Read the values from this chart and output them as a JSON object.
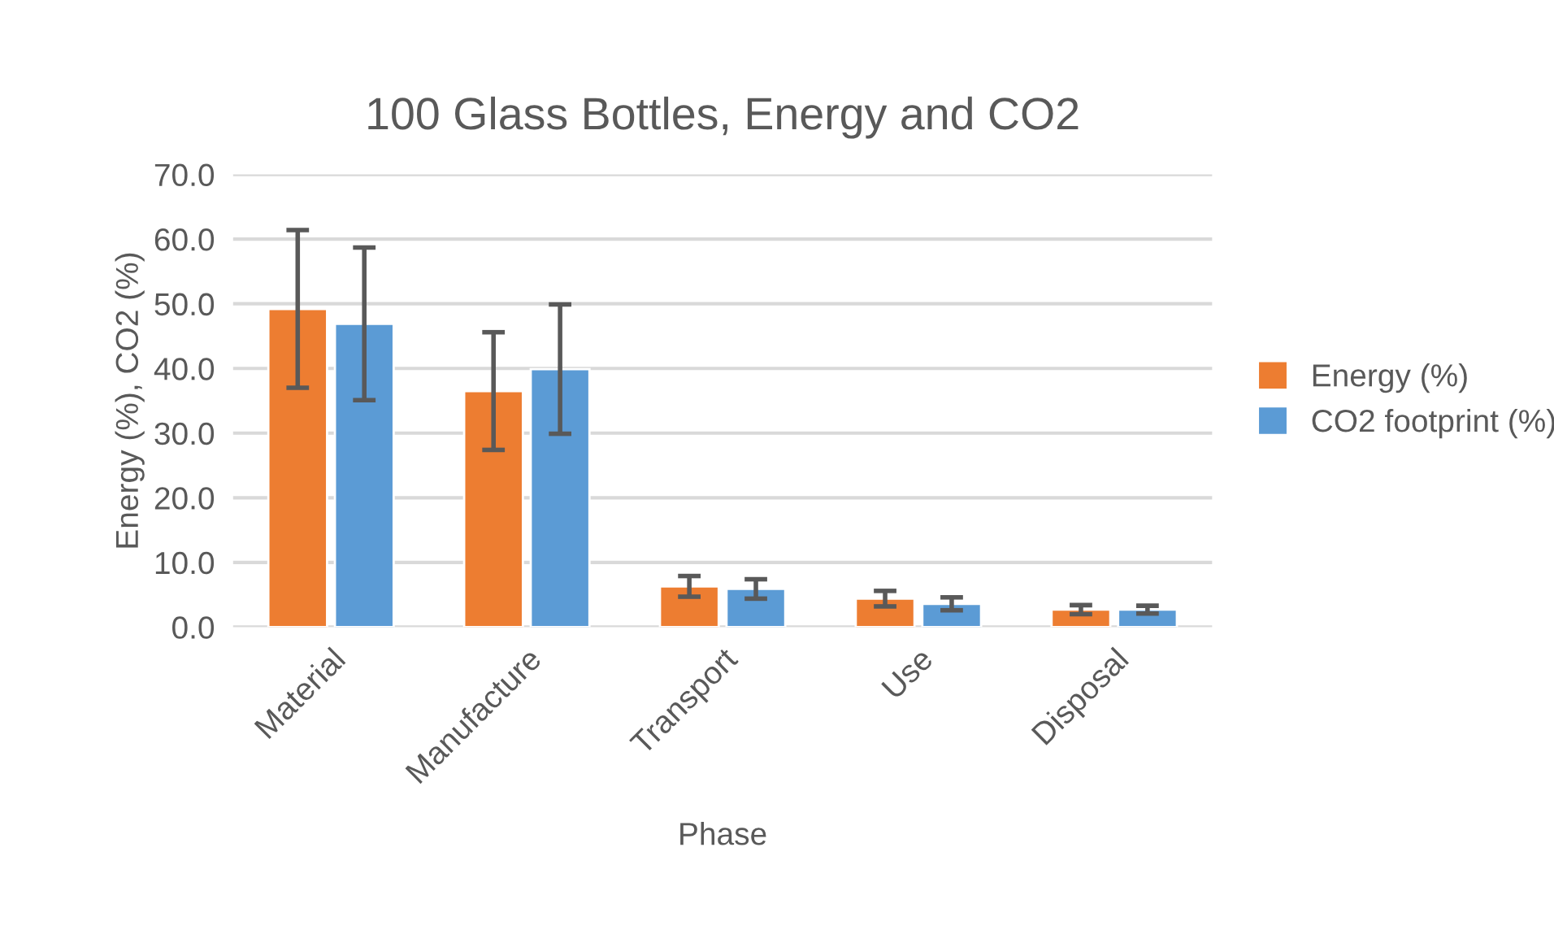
{
  "chart_data": {
    "type": "bar",
    "title": "100 Glass Bottles, Energy and CO2",
    "xlabel": "Phase",
    "ylabel": "Energy (%), CO2 (%)",
    "categories": [
      "Material",
      "Manufacture",
      "Transport",
      "Use",
      "Disposal"
    ],
    "series": [
      {
        "name": "Energy (%)",
        "color": "#ed7d31",
        "values": [
          49.2,
          36.5,
          6.3,
          4.4,
          2.7
        ],
        "errors": [
          12.2,
          9.1,
          1.6,
          1.2,
          0.7
        ]
      },
      {
        "name": "CO2 footprint (%)",
        "color": "#5b9bd5",
        "values": [
          46.9,
          39.9,
          5.9,
          3.6,
          2.7
        ],
        "errors": [
          11.8,
          10.0,
          1.5,
          1.0,
          0.6
        ]
      }
    ],
    "ylim": [
      0,
      70
    ],
    "yticks": [
      {
        "value": 0,
        "label": "0.0"
      },
      {
        "value": 10,
        "label": "10.0"
      },
      {
        "value": 20,
        "label": "20.0"
      },
      {
        "value": 30,
        "label": "30.0"
      },
      {
        "value": 40,
        "label": "40.0"
      },
      {
        "value": 50,
        "label": "50.0"
      },
      {
        "value": 60,
        "label": "60.0"
      },
      {
        "value": 70,
        "label": "70.0"
      }
    ],
    "grid": "y",
    "legend": "right"
  }
}
